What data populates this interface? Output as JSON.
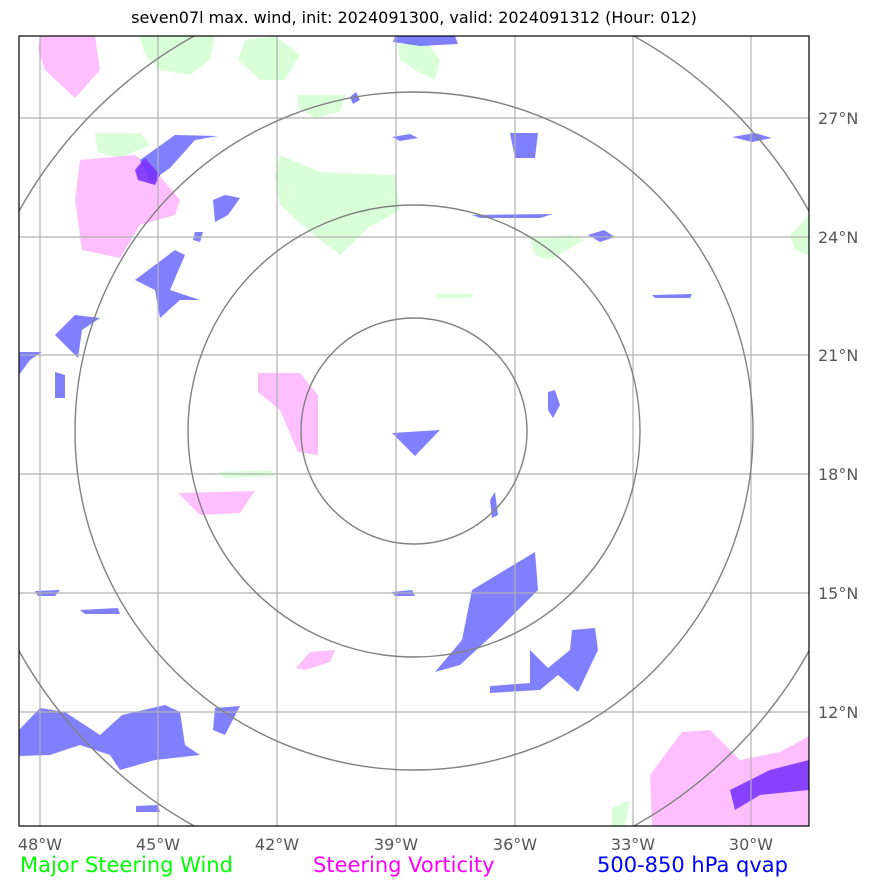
{
  "title": "seven07l max. wind, init: 2024091300, valid: 2024091312 (Hour: 012)",
  "map": {
    "lon_labels": [
      "48°W",
      "45°W",
      "42°W",
      "39°W",
      "36°W",
      "33°W",
      "30°W"
    ],
    "lat_labels": [
      "27°N",
      "24°N",
      "21°N",
      "18°N",
      "15°N",
      "12°N"
    ],
    "range_rings": 4,
    "colors": {
      "wind": "#00ff00",
      "vorticity": "#ff00ff",
      "qvap": "#0000ff",
      "ring": "#808080",
      "grid": "#b0b0b0"
    }
  },
  "legend": {
    "wind": "Major Steering Wind",
    "vorticity": "Steering Vorticity",
    "qvap": "500-850 hPa qvap"
  }
}
